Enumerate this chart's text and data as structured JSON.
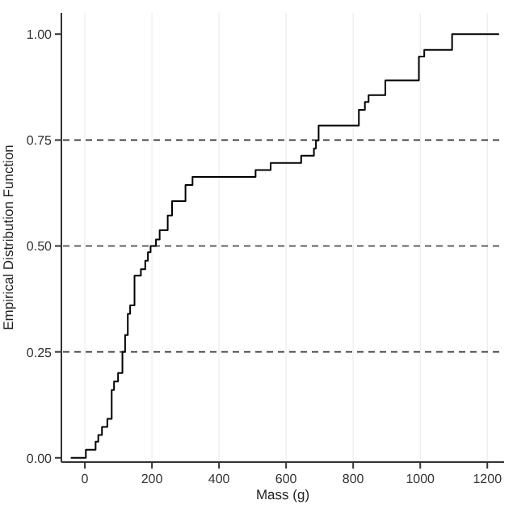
{
  "chart_data": {
    "type": "step",
    "xlabel": "Mass (g)",
    "ylabel": "Empirical Distribution Function",
    "x": [
      -42,
      3,
      32,
      40,
      51,
      67,
      80,
      87,
      99,
      112,
      120,
      128,
      135,
      148,
      167,
      180,
      188,
      196,
      212,
      223,
      247,
      260,
      300,
      321,
      509,
      554,
      645,
      683,
      689,
      697,
      817,
      835,
      846,
      896,
      996,
      1012,
      1095,
      1235
    ],
    "series": [
      {
        "color": "#000000",
        "values": [
          0,
          0.019,
          0.038,
          0.054,
          0.073,
          0.092,
          0.16,
          0.18,
          0.2,
          0.25,
          0.29,
          0.34,
          0.36,
          0.43,
          0.445,
          0.465,
          0.485,
          0.5,
          0.515,
          0.537,
          0.572,
          0.606,
          0.644,
          0.663,
          0.679,
          0.696,
          0.713,
          0.73,
          0.749,
          0.784,
          0.821,
          0.84,
          0.856,
          0.891,
          0.947,
          0.963,
          1,
          1
        ]
      }
    ],
    "xlim": [
      -70,
      1250
    ],
    "xticks": [
      0,
      200,
      400,
      600,
      800,
      1000,
      1200
    ],
    "ylim": [
      -0.01,
      1.05
    ],
    "yticks": [
      {
        "value": 0,
        "label": "0.00"
      },
      {
        "value": 0.25,
        "label": "0.25"
      },
      {
        "value": 0.5,
        "label": "0.50"
      },
      {
        "value": 0.75,
        "label": "0.75"
      },
      {
        "value": 1,
        "label": "1.00"
      }
    ],
    "grid": "x",
    "ref_lines": [
      {
        "axis": "y",
        "value": 0.25,
        "color": "#333333",
        "line_style": "dashed"
      },
      {
        "axis": "y",
        "value": 0.5,
        "color": "#333333",
        "line_style": "dashed"
      },
      {
        "axis": "y",
        "value": 0.75,
        "color": "#333333",
        "line_style": "dashed"
      }
    ]
  }
}
